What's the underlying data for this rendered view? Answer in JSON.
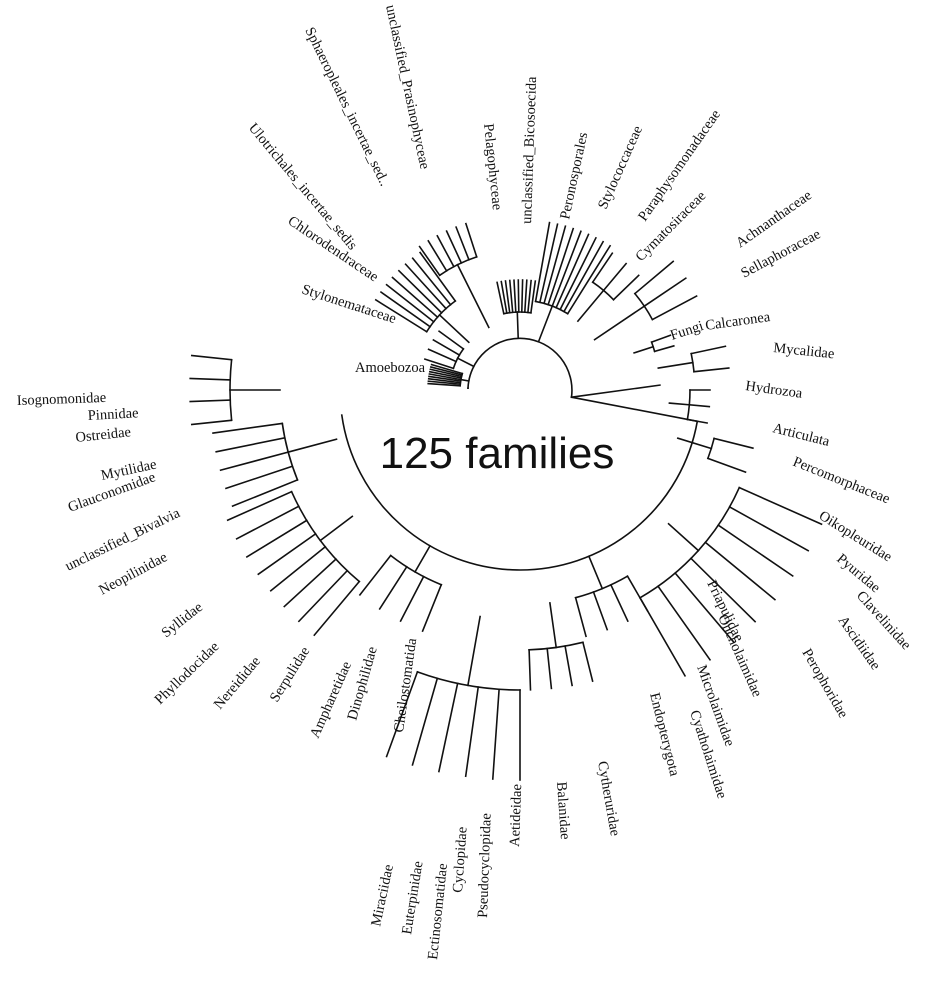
{
  "center_label": "125 families",
  "labels": {
    "amoebozoa": "Amoebozoa",
    "stylonemataceae": "Stylonemataceae",
    "chlorodendraceae": "Chlorodendraceae",
    "ulotrichales": "Ulotrichales_incertae_sedis",
    "sphaeropleales": "Sphaeropleales_incertae_sed..",
    "unclassified_prasinophyceae": "unclassified_Prasinophyceae",
    "pelagophyceae": "Pelagophyceae",
    "unclassified_bicosoecida": "unclassified_Bicosoecida",
    "peronosporales": "Peronosporales",
    "stylococcaceae": "Stylococcaceae",
    "paraphysomonadaceae": "Paraphysomonadaceae",
    "cymatosiraceae": "Cymatosiraceae",
    "achnanthaceae": "Achnanthaceae",
    "sellaphoraceae": "Sellaphoraceae",
    "fungi": "Fungi",
    "calcaronea": "Calcaronea",
    "mycalidae": "Mycalidae",
    "hydrozoa": "Hydrozoa",
    "articulata": "Articulata",
    "percomorphaceae": "Percomorphaceae",
    "oikopleuridae": "Oikopleuridae",
    "pyuridae": "Pyuridae",
    "clavelinidae": "Clavelinidae",
    "ascidiidae": "Ascidiidae",
    "perophoridae": "Perophoridae",
    "priapulidae": "Priapulidae",
    "oncholaimidae": "Oncholaimidae",
    "microlaimidae": "Microlaimidae",
    "cyatholaimidae": "Cyatholaimidae",
    "endopterygota": "Endopterygota",
    "cytheruridae": "Cytheruridae",
    "balanidae": "Balanidae",
    "aetideidae": "Aetideidae",
    "pseudocyclopidae": "Pseudocyclopidae",
    "cyclopidae": "Cyclopidae",
    "ectinosomatidae": "Ectinosomatidae",
    "euterpinidae": "Euterpinidae",
    "miraciidae": "Miraciidae",
    "cheilostomatida": "Cheilostomatida",
    "dinophilidae": "Dinophilidae",
    "ampharetidae": "Ampharetidae",
    "serpulidae": "Serpulidae",
    "nereididae": "Nereididae",
    "phyllodocidae": "Phyllodocidae",
    "syllidae": "Syllidae",
    "neopilinidae": "Neopilinidae",
    "unclassified_bivalvia": "unclassified_Bivalvia",
    "glauconomidae": "Glauconomidae",
    "mytilidae": "Mytilidae",
    "ostreidae": "Ostreidae",
    "pinnidae": "Pinnidae",
    "isognomonidae": "Isognomonidae"
  }
}
